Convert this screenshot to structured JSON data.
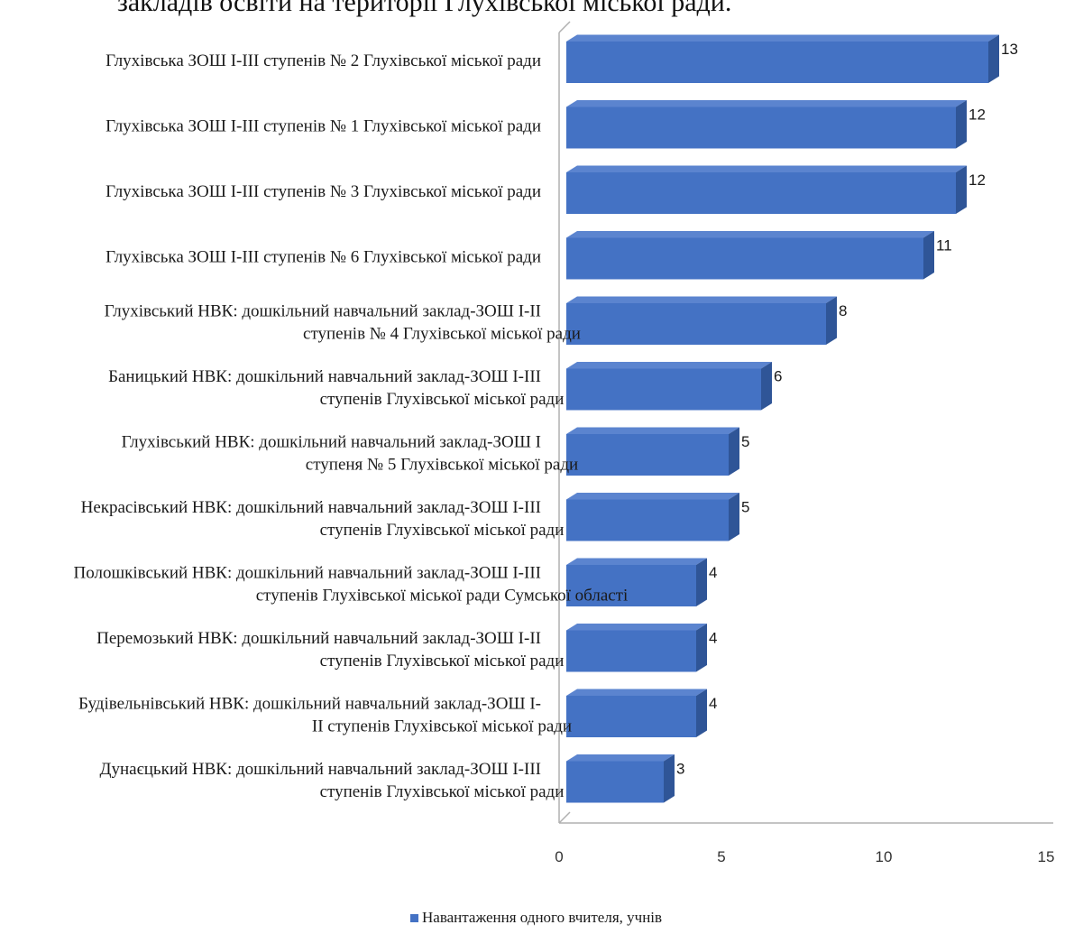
{
  "page_title": "закладів освіти на території Глухівської міської ради.",
  "chart_data": {
    "type": "bar",
    "orientation": "horizontal",
    "style": "3d",
    "categories": [
      [
        "Глухівська ЗОШ І-ІІІ ступенів № 2 Глухівської міської ради"
      ],
      [
        "Глухівська ЗОШ І-ІІІ ступенів  № 1 Глухівської міської ради"
      ],
      [
        "Глухівська ЗОШ І-ІІІ ступенів № 3 Глухівської міської ради"
      ],
      [
        "Глухівська ЗОШ І-ІІІ ступенів № 6 Глухівської міської ради"
      ],
      [
        "Глухівський НВК: дошкільний навчальний заклад-ЗОШ І-ІІ",
        "ступенів № 4 Глухівської міської ради"
      ],
      [
        "Баницький НВК: дошкільний навчальний заклад-ЗОШ І-ІІІ",
        "ступенів Глухівської міської ради"
      ],
      [
        "Глухівський НВК: дошкільний навчальний заклад-ЗОШ І",
        "ступеня № 5 Глухівської міської ради"
      ],
      [
        "Некрасівський НВК: дошкільний навчальний заклад-ЗОШ І-ІІІ",
        "ступенів Глухівської міської ради"
      ],
      [
        "Полошківський НВК: дошкільний навчальний заклад-ЗОШ І-ІІІ",
        "ступенів Глухівської міської ради Сумської області"
      ],
      [
        "Перемозький НВК: дошкільний навчальний заклад-ЗОШ І-ІІ",
        "ступенів Глухівської міської ради"
      ],
      [
        "Будівельнівський НВК: дошкільний навчальний заклад-ЗОШ І-",
        "ІІ ступенів Глухівської міської ради"
      ],
      [
        "Дунаєцький НВК: дошкільний навчальний заклад-ЗОШ І-ІІІ",
        "ступенів Глухівської міської ради"
      ]
    ],
    "values": [
      13,
      12,
      12,
      11,
      8,
      6,
      5,
      5,
      4,
      4,
      4,
      3
    ],
    "value_labels": [
      "13",
      "12",
      "12",
      "11",
      "8",
      "6",
      "5",
      "5",
      "4",
      "4",
      "4",
      "3"
    ],
    "xlim": [
      0,
      15
    ],
    "xticks": [
      "0",
      "5",
      "10",
      "15"
    ],
    "series": [
      {
        "name": "Навантаження одного вчителя, учнів",
        "values": [
          13,
          12,
          12,
          11,
          8,
          6,
          5,
          5,
          4,
          4,
          4,
          3
        ]
      }
    ],
    "legend": {
      "position": "bottom"
    },
    "grid": false,
    "colors": {
      "bar_front": "#4472c4",
      "bar_side": "#2f5597",
      "bar_top": "#5b84cf",
      "axis": "#b0b0b0"
    }
  }
}
